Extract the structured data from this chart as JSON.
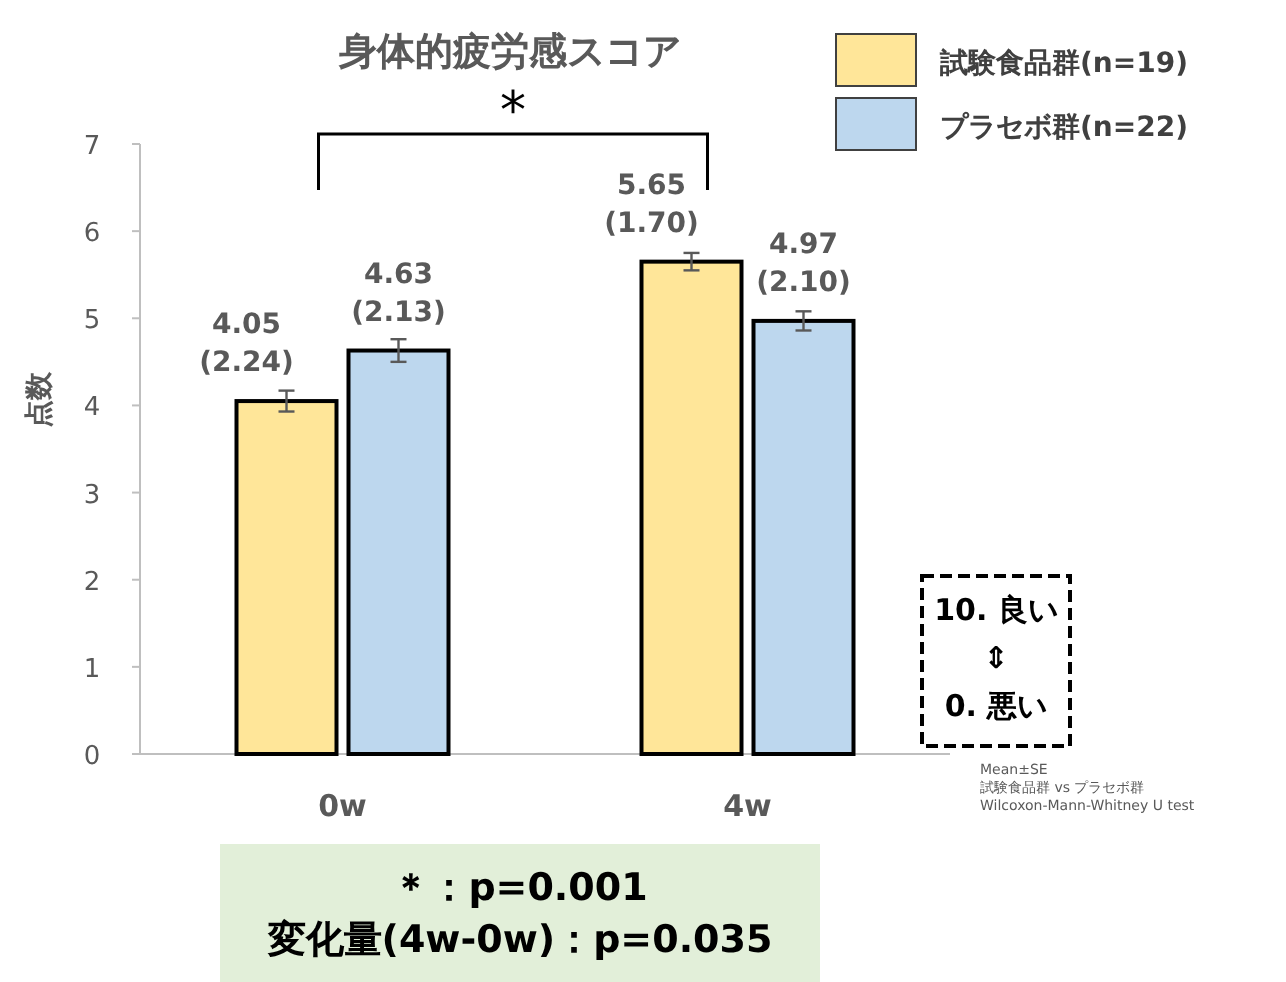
{
  "chart_data": {
    "type": "bar",
    "title": "身体的疲労感スコア",
    "ylabel": "点数",
    "categories": [
      "0w",
      "4w"
    ],
    "series": [
      {
        "name": "試験食品群(n=19)",
        "color": "#ffe699",
        "values": [
          4.05,
          5.65
        ],
        "errors": [
          0.12,
          0.1
        ],
        "value_labels": [
          "4.05\n(2.24)",
          "5.65\n(1.70)"
        ]
      },
      {
        "name": "プラセボ群(n=22)",
        "color": "#bdd7ee",
        "values": [
          4.63,
          4.97
        ],
        "errors": [
          0.13,
          0.11
        ],
        "value_labels": [
          "4.63\n(2.13)",
          "4.97\n(2.10)"
        ]
      }
    ],
    "ylim": [
      0,
      7
    ],
    "yticks": [
      0,
      1,
      2,
      3,
      4,
      5,
      6,
      7
    ],
    "grid": false,
    "legend": "top right",
    "annotations": [
      "*",
      "10. 良い\n⇕\n0. 悪い",
      "Mean±SE\n試験食品群 vs プラセボ群\nWilcoxon-Mann-Whitney U test",
      "＊：p=0.001\n変化量(4w-0w)：p=0.035"
    ]
  }
}
